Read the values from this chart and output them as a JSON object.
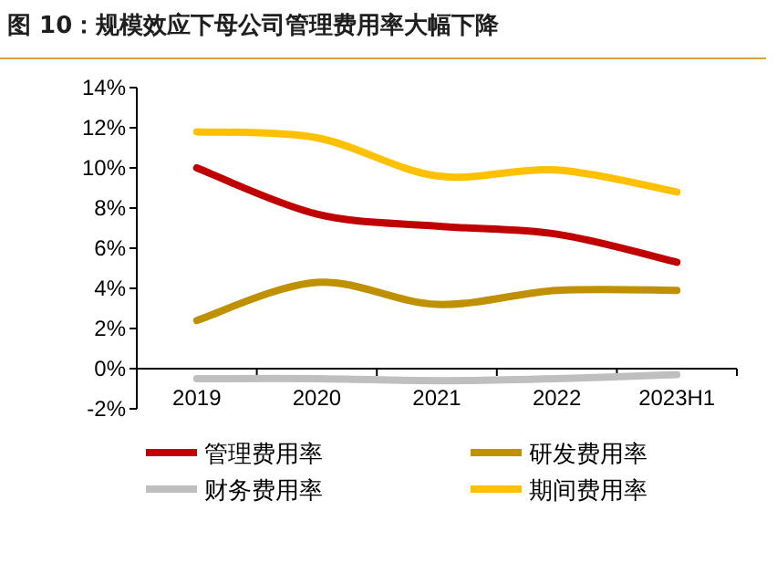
{
  "chart_data": {
    "type": "line",
    "title": "图 10：规模效应下母公司管理费用率大幅下降",
    "categories": [
      "2019",
      "2020",
      "2021",
      "2022",
      "2023H1"
    ],
    "series": [
      {
        "name": "管理费用率",
        "color": "#c00000",
        "values": [
          10.0,
          7.7,
          7.1,
          6.7,
          5.3
        ]
      },
      {
        "name": "研发费用率",
        "color": "#bf9000",
        "values": [
          2.4,
          4.3,
          3.2,
          3.9,
          3.9
        ]
      },
      {
        "name": "财务费用率",
        "color": "#bfbfbf",
        "values": [
          -0.5,
          -0.5,
          -0.6,
          -0.5,
          -0.3
        ]
      },
      {
        "name": "期间费用率",
        "color": "#ffc000",
        "values": [
          11.8,
          11.5,
          9.6,
          9.9,
          8.8
        ]
      }
    ],
    "ylim": [
      -2,
      14
    ],
    "yticks": [
      {
        "value": -2,
        "label": "-2%"
      },
      {
        "value": 0,
        "label": "0%"
      },
      {
        "value": 2,
        "label": "2%"
      },
      {
        "value": 4,
        "label": "4%"
      },
      {
        "value": 6,
        "label": "6%"
      },
      {
        "value": 8,
        "label": "8%"
      },
      {
        "value": 10,
        "label": "10%"
      },
      {
        "value": 12,
        "label": "12%"
      },
      {
        "value": 14,
        "label": "14%"
      }
    ],
    "grid": false,
    "legend": "bottom",
    "marker": "none",
    "line_style": "solid"
  }
}
